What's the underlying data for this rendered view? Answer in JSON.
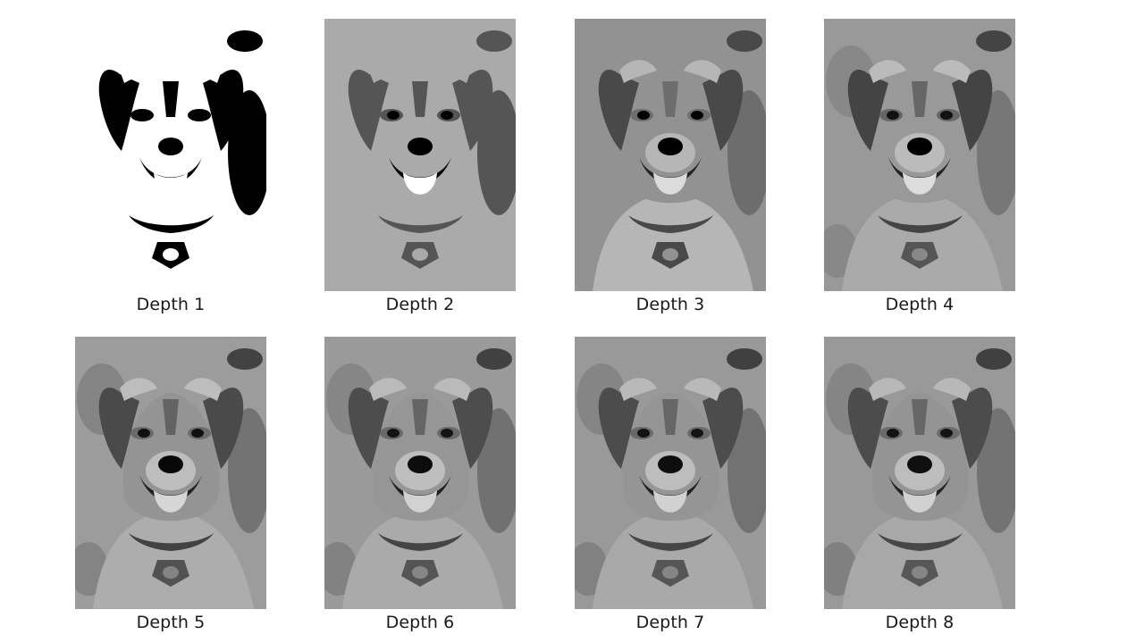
{
  "panels": [
    {
      "label": "Depth 1",
      "depth": 1
    },
    {
      "label": "Depth 2",
      "depth": 2
    },
    {
      "label": "Depth 3",
      "depth": 3
    },
    {
      "label": "Depth 4",
      "depth": 4
    },
    {
      "label": "Depth 5",
      "depth": 5
    },
    {
      "label": "Depth 6",
      "depth": 6
    },
    {
      "label": "Depth 7",
      "depth": 7
    },
    {
      "label": "Depth 8",
      "depth": 8
    }
  ]
}
